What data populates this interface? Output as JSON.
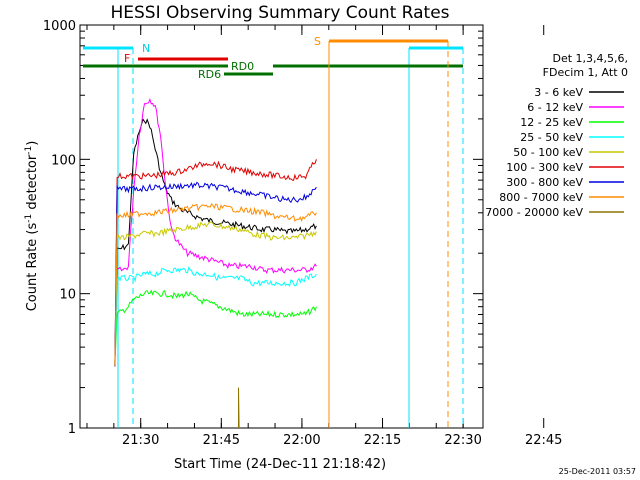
{
  "chart_data": {
    "type": "line",
    "title": "HESSI Observing Summary Count Rates",
    "xlabel": "Start Time (24-Dec-11 21:18:42)",
    "ylabel": "Count Rate (s⁻¹ detector⁻¹)",
    "ylabel_main": "Count Rate (s",
    "ylabel_sup1": "-1",
    "ylabel_mid": " detector",
    "ylabel_sup2": "-1",
    "ylabel_end": ")",
    "x_unit": "minutes after 21:18:42 (UT)",
    "xlim": [
      0,
      75
    ],
    "ylim": [
      1,
      1000
    ],
    "yscale": "log",
    "x_ticks": [
      "21:30",
      "21:45",
      "22:00",
      "22:15",
      "22:30",
      "22:45"
    ],
    "y_ticks": [
      "1",
      "10",
      "100",
      "1000"
    ],
    "legend": {
      "header1": "Det 1,3,4,5,6,",
      "header2": "FDecim 1, Att 0",
      "placement": "right"
    },
    "series": [
      {
        "name": "3 - 6 keV",
        "color": "#000000",
        "points": [
          [
            6.5,
            3
          ],
          [
            6.9,
            21
          ],
          [
            8,
            22
          ],
          [
            9,
            23
          ],
          [
            10,
            110
          ],
          [
            11,
            160
          ],
          [
            12,
            200
          ],
          [
            13,
            180
          ],
          [
            14,
            120
          ],
          [
            15,
            80
          ],
          [
            16,
            60
          ],
          [
            17,
            50
          ],
          [
            18,
            45
          ],
          [
            19,
            42
          ],
          [
            20,
            40
          ],
          [
            22,
            37
          ],
          [
            24,
            35
          ],
          [
            26,
            34
          ],
          [
            28,
            33
          ],
          [
            30,
            32
          ],
          [
            32,
            31
          ],
          [
            34,
            30
          ],
          [
            36,
            30
          ],
          [
            38,
            29
          ],
          [
            40,
            29
          ],
          [
            42,
            30
          ],
          [
            44,
            32
          ]
        ]
      },
      {
        "name": "6 - 12 keV",
        "color": "#ff00ff",
        "points": [
          [
            6.5,
            3
          ],
          [
            6.9,
            15
          ],
          [
            8,
            15
          ],
          [
            9,
            16
          ],
          [
            10,
            60
          ],
          [
            11,
            150
          ],
          [
            12,
            260
          ],
          [
            13,
            280
          ],
          [
            14,
            250
          ],
          [
            15,
            150
          ],
          [
            16,
            60
          ],
          [
            17,
            30
          ],
          [
            18,
            25
          ],
          [
            19,
            22
          ],
          [
            20,
            20
          ],
          [
            22,
            19
          ],
          [
            24,
            18
          ],
          [
            26,
            17
          ],
          [
            28,
            16
          ],
          [
            30,
            16
          ],
          [
            32,
            16
          ],
          [
            34,
            15
          ],
          [
            36,
            15
          ],
          [
            38,
            15
          ],
          [
            40,
            15
          ],
          [
            42,
            15
          ],
          [
            44,
            16
          ]
        ]
      },
      {
        "name": "12 - 25 keV",
        "color": "#00ff00",
        "points": [
          [
            6.5,
            3
          ],
          [
            6.9,
            7
          ],
          [
            8,
            7.5
          ],
          [
            9,
            8
          ],
          [
            10,
            9
          ],
          [
            12,
            10
          ],
          [
            14,
            10
          ],
          [
            16,
            10
          ],
          [
            18,
            9.5
          ],
          [
            20,
            10
          ],
          [
            22,
            9
          ],
          [
            24,
            8.5
          ],
          [
            26,
            8
          ],
          [
            28,
            7.5
          ],
          [
            30,
            7
          ],
          [
            32,
            7
          ],
          [
            34,
            7
          ],
          [
            36,
            7
          ],
          [
            38,
            7
          ],
          [
            40,
            7
          ],
          [
            42,
            7
          ],
          [
            44,
            8
          ]
        ]
      },
      {
        "name": "25 - 50 keV",
        "color": "#00ffff",
        "points": [
          [
            6.5,
            3
          ],
          [
            6.9,
            13
          ],
          [
            8,
            13
          ],
          [
            10,
            13
          ],
          [
            12,
            14
          ],
          [
            14,
            14
          ],
          [
            16,
            15
          ],
          [
            18,
            15
          ],
          [
            20,
            15
          ],
          [
            22,
            14
          ],
          [
            24,
            14
          ],
          [
            26,
            13
          ],
          [
            28,
            13
          ],
          [
            30,
            13
          ],
          [
            32,
            12
          ],
          [
            34,
            12
          ],
          [
            36,
            12
          ],
          [
            38,
            12
          ],
          [
            40,
            12
          ],
          [
            42,
            13
          ],
          [
            44,
            14
          ]
        ]
      },
      {
        "name": "50 - 100 keV",
        "color": "#c8c800",
        "points": [
          [
            6.5,
            3
          ],
          [
            6.9,
            26
          ],
          [
            8,
            26
          ],
          [
            10,
            27
          ],
          [
            12,
            28
          ],
          [
            14,
            28
          ],
          [
            16,
            29
          ],
          [
            18,
            30
          ],
          [
            20,
            31
          ],
          [
            22,
            32
          ],
          [
            24,
            33
          ],
          [
            26,
            32
          ],
          [
            28,
            31
          ],
          [
            30,
            30
          ],
          [
            32,
            28
          ],
          [
            34,
            27
          ],
          [
            36,
            26
          ],
          [
            38,
            26
          ],
          [
            40,
            26
          ],
          [
            42,
            27
          ],
          [
            44,
            29
          ]
        ]
      },
      {
        "name": "100 - 300 keV",
        "color": "#e00000",
        "points": [
          [
            6.5,
            3
          ],
          [
            6.9,
            75
          ],
          [
            8,
            75
          ],
          [
            10,
            75
          ],
          [
            12,
            75
          ],
          [
            14,
            76
          ],
          [
            16,
            78
          ],
          [
            18,
            80
          ],
          [
            20,
            85
          ],
          [
            22,
            90
          ],
          [
            24,
            95
          ],
          [
            26,
            90
          ],
          [
            28,
            85
          ],
          [
            30,
            82
          ],
          [
            32,
            80
          ],
          [
            34,
            78
          ],
          [
            36,
            76
          ],
          [
            38,
            74
          ],
          [
            40,
            73
          ],
          [
            42,
            75
          ],
          [
            44,
            100
          ]
        ]
      },
      {
        "name": "300 - 800 keV",
        "color": "#0000e0",
        "points": [
          [
            6.5,
            3
          ],
          [
            6.9,
            60
          ],
          [
            8,
            60
          ],
          [
            10,
            60
          ],
          [
            12,
            61
          ],
          [
            14,
            62
          ],
          [
            16,
            62
          ],
          [
            18,
            63
          ],
          [
            20,
            64
          ],
          [
            22,
            64
          ],
          [
            24,
            63
          ],
          [
            26,
            62
          ],
          [
            28,
            60
          ],
          [
            30,
            58
          ],
          [
            32,
            56
          ],
          [
            34,
            54
          ],
          [
            36,
            52
          ],
          [
            38,
            50
          ],
          [
            40,
            50
          ],
          [
            42,
            52
          ],
          [
            44,
            62
          ]
        ]
      },
      {
        "name": "800 - 7000 keV",
        "color": "#ff8c00",
        "points": [
          [
            6.5,
            3
          ],
          [
            6.9,
            38
          ],
          [
            8,
            38
          ],
          [
            10,
            39
          ],
          [
            12,
            40
          ],
          [
            14,
            40
          ],
          [
            16,
            41
          ],
          [
            18,
            42
          ],
          [
            20,
            43
          ],
          [
            22,
            44
          ],
          [
            24,
            45
          ],
          [
            26,
            44
          ],
          [
            28,
            43
          ],
          [
            30,
            42
          ],
          [
            32,
            41
          ],
          [
            34,
            40
          ],
          [
            36,
            38
          ],
          [
            38,
            37
          ],
          [
            40,
            36
          ],
          [
            42,
            37
          ],
          [
            44,
            40
          ]
        ]
      },
      {
        "name": "7000 - 20000 keV",
        "color": "#8b7500",
        "points": [
          [
            29.5,
            1
          ],
          [
            29.5,
            2
          ],
          [
            29.6,
            1
          ]
        ]
      }
    ],
    "segment_markers": {
      "note": "horizontal status bars near the top of the plot",
      "labels": [
        "N",
        "F",
        "RD0",
        "RD6",
        "S"
      ]
    }
  },
  "footer": {
    "stamp": "25-Dec-2011 03:57"
  }
}
